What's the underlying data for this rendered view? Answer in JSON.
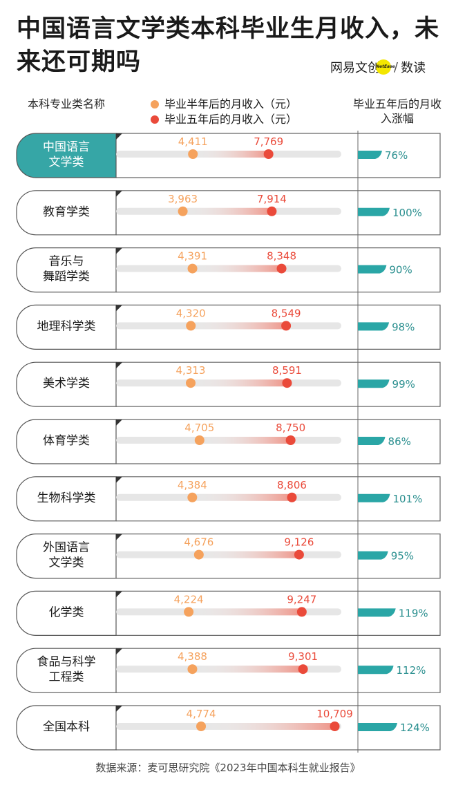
{
  "title": "中国语言文学类本科毕业生月收入，未来还可期吗",
  "logo": {
    "brand": "网易文创",
    "mark": "NetEase",
    "slash": "/",
    "sub": "数读"
  },
  "headers": {
    "category": "本科专业类名称",
    "growth": "毕业五年后的月收入涨幅"
  },
  "colors": {
    "half_year": "#f5a25d",
    "five_year": "#ea4a3a",
    "growth_bar": "#2aa6a6",
    "highlight": "#36a6a6",
    "track": "#e6e6e6"
  },
  "chart_data": {
    "type": "bar",
    "categories": [
      "中国语言文学类",
      "教育学类",
      "音乐与舞蹈学类",
      "地理科学类",
      "美术学类",
      "体育学类",
      "生物科学类",
      "外国语言文学类",
      "化学类",
      "食品与科学工程类",
      "全国本科"
    ],
    "category_lines": [
      [
        "中国语言",
        "文学类"
      ],
      [
        "教育学类"
      ],
      [
        "音乐与",
        "舞蹈学类"
      ],
      [
        "地理科学类"
      ],
      [
        "美术学类"
      ],
      [
        "体育学类"
      ],
      [
        "生物科学类"
      ],
      [
        "外国语言",
        "文学类"
      ],
      [
        "化学类"
      ],
      [
        "食品与科学",
        "工程类"
      ],
      [
        "全国本科"
      ]
    ],
    "highlight_index": 0,
    "series": [
      {
        "name": "毕业半年后的月收入（元）",
        "values": [
          4411,
          3963,
          4391,
          4320,
          4313,
          4705,
          4384,
          4676,
          4224,
          4388,
          4774
        ],
        "labels": [
          "4,411",
          "3,963",
          "4,391",
          "4,320",
          "4,313",
          "4,705",
          "4,384",
          "4,676",
          "4,224",
          "4,388",
          "4,774"
        ]
      },
      {
        "name": "毕业五年后的月收入（元）",
        "values": [
          7769,
          7914,
          8348,
          8549,
          8591,
          8750,
          8806,
          9126,
          9247,
          9301,
          10709
        ],
        "labels": [
          "7,769",
          "7,914",
          "8,348",
          "8,549",
          "8,591",
          "8,750",
          "8,806",
          "9,126",
          "9,247",
          "9,301",
          "10,709"
        ]
      }
    ],
    "growth": {
      "values": [
        76,
        100,
        90,
        98,
        99,
        86,
        101,
        95,
        119,
        112,
        124
      ],
      "labels": [
        "76%",
        "100%",
        "90%",
        "98%",
        "99%",
        "86%",
        "101%",
        "95%",
        "119%",
        "112%",
        "124%"
      ]
    }
  },
  "source": "数据来源：麦可思研究院《2023年中国本科生就业报告》"
}
